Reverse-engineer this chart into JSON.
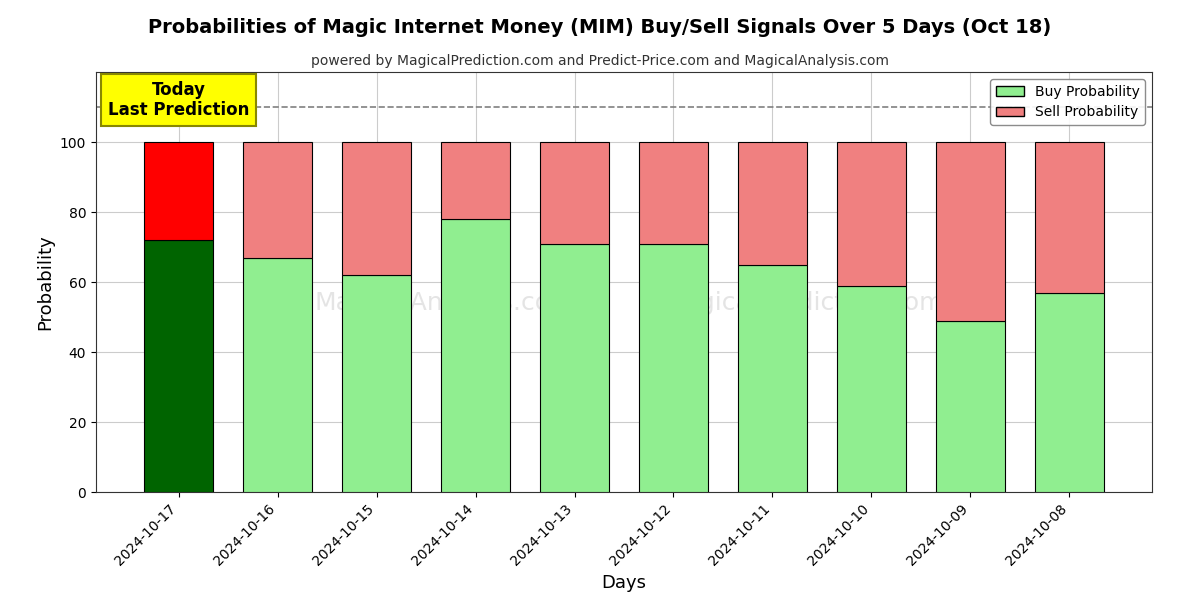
{
  "title": "Probabilities of Magic Internet Money (MIM) Buy/Sell Signals Over 5 Days (Oct 18)",
  "subtitle": "powered by MagicalPrediction.com and Predict-Price.com and MagicalAnalysis.com",
  "xlabel": "Days",
  "ylabel": "Probability",
  "dates": [
    "2024-10-17",
    "2024-10-16",
    "2024-10-15",
    "2024-10-14",
    "2024-10-13",
    "2024-10-12",
    "2024-10-11",
    "2024-10-10",
    "2024-10-09",
    "2024-10-08"
  ],
  "buy_probs": [
    72,
    67,
    62,
    78,
    71,
    71,
    65,
    59,
    49,
    57
  ],
  "sell_probs": [
    28,
    33,
    38,
    22,
    29,
    29,
    35,
    41,
    51,
    43
  ],
  "today_buy_color": "#006400",
  "today_sell_color": "#FF0000",
  "buy_color": "#90EE90",
  "sell_color": "#F08080",
  "today_annotation": "Today\nLast Prediction",
  "today_annotation_bg": "#FFFF00",
  "ylim": [
    0,
    120
  ],
  "yticks": [
    0,
    20,
    40,
    60,
    80,
    100
  ],
  "dashed_line_y": 110,
  "background_color": "#ffffff",
  "grid_color": "#cccccc",
  "bar_edge_color": "#000000",
  "bar_width": 0.7
}
